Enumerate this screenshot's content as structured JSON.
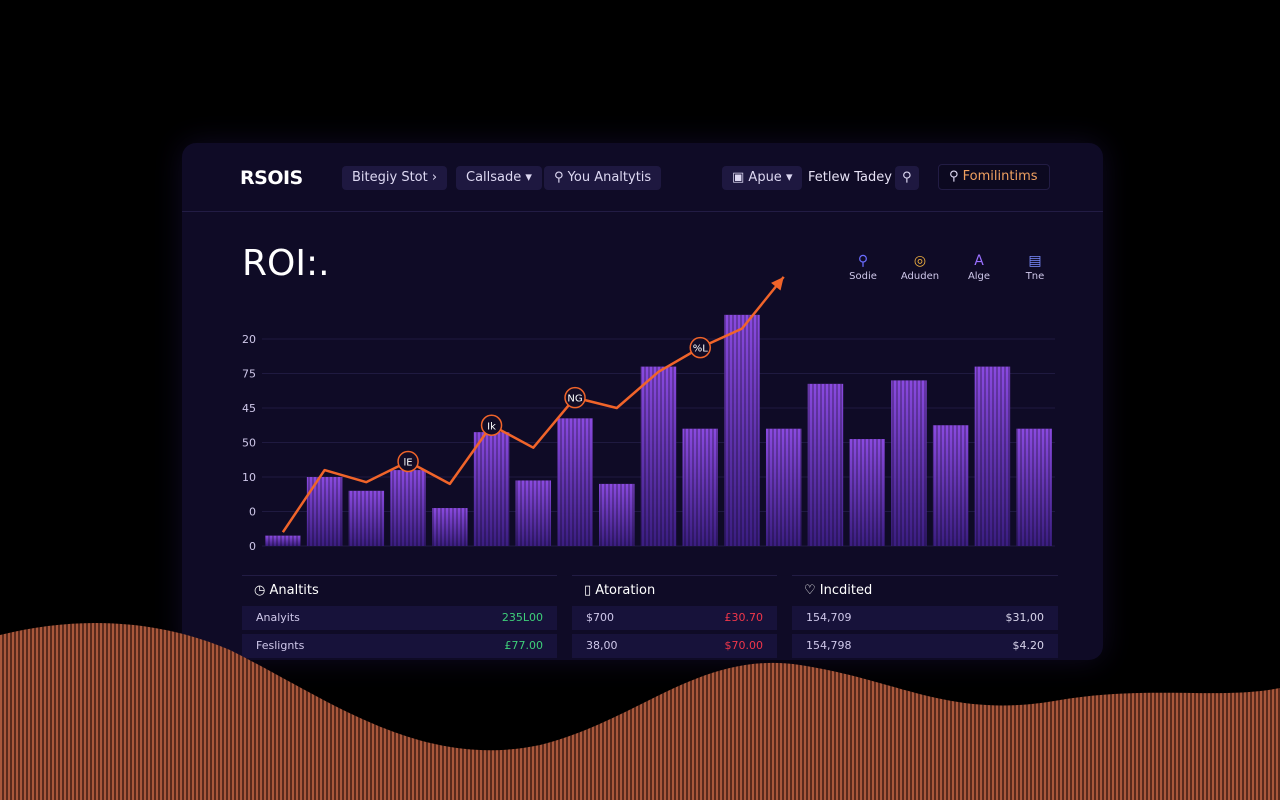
{
  "nav": {
    "brand": "RSOIS",
    "items": [
      "Bitegiy Stot",
      "Callsade",
      "You Analtytis"
    ],
    "right": [
      "Apue",
      "Fetlew Tadey",
      "Fomilintims"
    ]
  },
  "header": {
    "title": "ROI:."
  },
  "tools": [
    "Sodie",
    "Aduden",
    "Alge",
    "Tne"
  ],
  "chart_data": {
    "type": "bar",
    "categories": [
      null,
      null,
      null,
      null,
      null,
      null,
      null,
      null,
      null,
      null,
      null,
      null,
      null,
      null,
      null,
      null,
      null,
      null,
      null
    ],
    "values": [
      0.3,
      2.0,
      1.6,
      2.2,
      1.1,
      3.3,
      1.9,
      3.7,
      1.8,
      5.2,
      3.4,
      6.7,
      3.4,
      4.7,
      3.1,
      4.8,
      3.5,
      5.2,
      3.4
    ],
    "color": "#7b3fd0",
    "line_values": [
      0.4,
      2.2,
      1.85,
      2.45,
      1.8,
      3.5,
      2.85,
      4.3,
      4.0,
      5.05,
      5.75,
      6.3,
      7.8,
      null,
      null,
      null,
      null,
      null,
      null
    ],
    "line_color": "#f0642a",
    "annotations": [
      {
        "text": "lE",
        "index": 3
      },
      {
        "text": "Ik",
        "index": 5
      },
      {
        "text": "NG",
        "index": 7
      },
      {
        "text": "%L",
        "index": 10
      }
    ],
    "ylim": [
      0,
      8
    ],
    "yticks": [
      0,
      {
        "value": 1,
        "label": "0"
      },
      {
        "value": 2,
        "label": "10"
      },
      {
        "value": 3,
        "label": "50"
      },
      {
        "value": 4,
        "label": "45"
      },
      {
        "value": 5,
        "label": "75"
      },
      {
        "value": 6,
        "label": "20"
      }
    ],
    "grid": true
  },
  "panels": [
    {
      "title": "Analtits",
      "value_color": "#3ecf7a",
      "rows": [
        [
          "Analyits",
          "235L00"
        ],
        [
          "Feslignts",
          "£77.00"
        ]
      ]
    },
    {
      "title": "Atoration",
      "value_color": "#f0364a",
      "rows": [
        [
          "$700",
          "£30.70"
        ],
        [
          "38,00",
          "$70.00"
        ]
      ]
    },
    {
      "title": "Incdited",
      "value_color": "#d8d4ea",
      "rows": [
        [
          "154,709",
          "$31,00"
        ],
        [
          "154,798",
          "$4.20"
        ]
      ]
    }
  ]
}
